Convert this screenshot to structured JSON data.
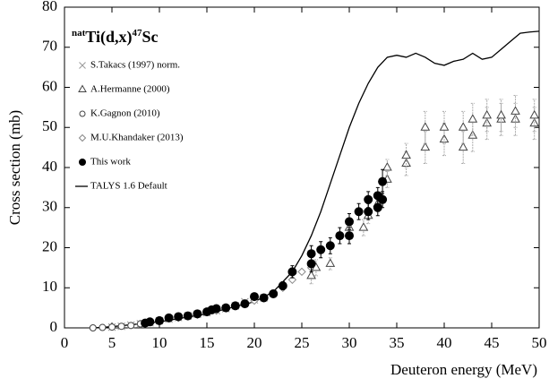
{
  "chart_data": {
    "type": "scatter",
    "title": [
      "nat",
      "Ti(d,x)",
      "47",
      "Sc"
    ],
    "xlabel": "Deuteron energy (MeV)",
    "ylabel": "Cross section (mb)",
    "xlim": [
      0,
      50
    ],
    "xticks": [
      0,
      5,
      10,
      15,
      20,
      25,
      30,
      35,
      40,
      45,
      50
    ],
    "ylim": [
      0,
      80
    ],
    "yticks": [
      0,
      10,
      20,
      30,
      40,
      50,
      60,
      70,
      80
    ],
    "legend": "upper left",
    "series": [
      {
        "name": "S.Takacs (1997) norm.",
        "marker": "x",
        "color": "#999999",
        "x": [
          5,
          6,
          7,
          8,
          9,
          10,
          11,
          12,
          13,
          14,
          15,
          16,
          17,
          18,
          19,
          20,
          21
        ],
        "values": [
          0.2,
          0.4,
          0.7,
          1,
          1.3,
          1.8,
          2.2,
          2.6,
          3,
          3.4,
          3.8,
          4.3,
          4.8,
          5.5,
          6.5,
          7,
          7.5
        ]
      },
      {
        "name": "A.Hermanne (2000)",
        "marker": "triangle",
        "color": "#444444",
        "x": [
          26,
          26.5,
          28,
          30,
          31.5,
          32,
          33,
          34,
          34,
          36,
          36,
          38,
          38,
          40,
          40,
          42,
          42,
          43,
          43,
          44.5,
          44.5,
          46,
          46,
          47.5,
          47.5,
          49.5,
          49.5
        ],
        "values": [
          13,
          15,
          16,
          25,
          25,
          28,
          31,
          37,
          40,
          41,
          43,
          45,
          50,
          47,
          50,
          45,
          50,
          48,
          52,
          51,
          53,
          52,
          53,
          52,
          54,
          51,
          53
        ],
        "errors": [
          2,
          2,
          1.5,
          2,
          2,
          2,
          2,
          2,
          2,
          3,
          3,
          4,
          4,
          4,
          4,
          4,
          4,
          4,
          4,
          4,
          4,
          4,
          4,
          4,
          4,
          4,
          4
        ]
      },
      {
        "name": "K.Gagnon (2010)",
        "marker": "circle",
        "color": "#444444",
        "x": [
          3,
          4,
          5,
          6,
          7,
          8,
          9,
          10
        ],
        "values": [
          0,
          0.1,
          0.2,
          0.4,
          0.6,
          1,
          1.5,
          2
        ]
      },
      {
        "name": "M.U.Khandaker (2013)",
        "marker": "diamond",
        "color": "#888888",
        "x": [
          8,
          10,
          12,
          14,
          16,
          18,
          19,
          20,
          21,
          22,
          23,
          24,
          25,
          26
        ],
        "values": [
          1,
          1.8,
          2.5,
          3.3,
          4.3,
          5.5,
          6,
          6.8,
          7.5,
          8.5,
          10,
          12,
          14,
          15
        ]
      },
      {
        "name": "This work",
        "marker": "dot",
        "color": "#000000",
        "x": [
          8.5,
          9,
          10,
          11,
          12,
          13,
          14,
          15,
          15.5,
          16,
          17,
          18,
          19,
          20,
          21,
          22,
          23,
          24,
          26,
          26,
          27,
          28,
          29,
          30,
          30,
          31,
          32,
          32,
          33,
          33,
          33.5,
          33.5
        ],
        "values": [
          1.2,
          1.5,
          1.8,
          2.5,
          2.8,
          3,
          3.5,
          4,
          4.5,
          4.8,
          5,
          5.5,
          6,
          7.8,
          7.5,
          8.5,
          10.5,
          14,
          18.5,
          16,
          19.5,
          20.5,
          23,
          23,
          26.5,
          29,
          29,
          32,
          30,
          33,
          36.5,
          32
        ],
        "errors": [
          0.3,
          0.3,
          0.3,
          0.3,
          0.3,
          0.3,
          0.4,
          0.4,
          0.4,
          0.5,
          0.5,
          0.5,
          0.6,
          0.8,
          0.8,
          0.9,
          1,
          1.5,
          2,
          2,
          2,
          2,
          2,
          2,
          2,
          2,
          2,
          2,
          2,
          2,
          3,
          2
        ]
      },
      {
        "name": "TALYS 1.6 Default",
        "marker": "line",
        "color": "#000000",
        "x": [
          3,
          5,
          10,
          15,
          20,
          22,
          24,
          25,
          26,
          27,
          28,
          29,
          30,
          31,
          32,
          33,
          34,
          35,
          36,
          37,
          38,
          39,
          40,
          41,
          42,
          43,
          44,
          45,
          46,
          47,
          48,
          49,
          50
        ],
        "values": [
          0,
          0.3,
          1.5,
          3.5,
          6.5,
          9,
          14,
          18,
          23,
          29,
          36,
          43,
          50,
          56,
          61,
          65,
          67.5,
          68,
          67.5,
          68.5,
          67.5,
          66,
          65.5,
          66.5,
          67,
          68.5,
          67,
          67.5,
          69.5,
          71.5,
          73.5,
          73.8,
          74
        ]
      }
    ]
  }
}
